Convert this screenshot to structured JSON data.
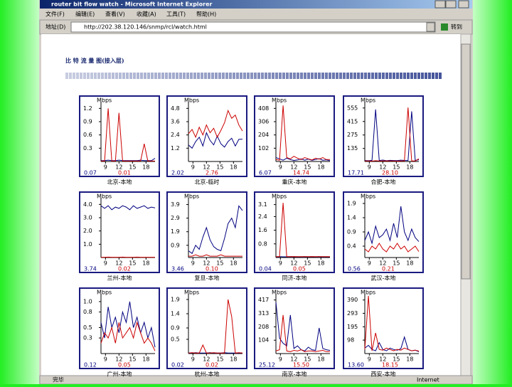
{
  "window": {
    "title": "router bit flow watch - Microsoft Internet Explorer",
    "menu": [
      "文件(F)",
      "编辑(E)",
      "查看(V)",
      "收藏(A)",
      "工具(T)",
      "帮助(H)"
    ],
    "address_label": "地址(D)",
    "url": "http://202.38.120.146/snmp/rcl/watch.html",
    "go": "转到",
    "status": "完毕",
    "zone": "Internet"
  },
  "page": {
    "heading": "比 特 流 量 图(接入层)"
  },
  "x": [
    8,
    8.8,
    9.6,
    10.4,
    11.2,
    12,
    12.8,
    13.6,
    14.4,
    15.2,
    16,
    16.8,
    17.6,
    18.4,
    19.2,
    20
  ],
  "xlim": [
    8,
    20
  ],
  "xticks": [
    9,
    12,
    15,
    18
  ],
  "charts": [
    {
      "name": "北京-本地",
      "unit": "Mbps",
      "ylim": [
        0,
        1.35
      ],
      "yticks": [
        0.3,
        0.6,
        0.9,
        1.2
      ],
      "readings": [
        "0.07",
        "0.01"
      ],
      "series": [
        {
          "color": "#000080",
          "values": [
            0.02,
            0.02,
            0.03,
            0.02,
            0.02,
            0.03,
            0.02,
            0.02,
            0.02,
            0.02,
            0.02,
            0.03,
            0.02,
            0.02,
            0.02,
            0.07
          ]
        },
        {
          "color": "#cc0000",
          "values": [
            0.01,
            0.01,
            1.2,
            0.01,
            0.01,
            1.1,
            0.01,
            0.01,
            0.01,
            0.01,
            0.01,
            0.01,
            0.4,
            0.01,
            0.01,
            0.01
          ]
        }
      ]
    },
    {
      "name": "北京-临时",
      "unit": "Mbps",
      "ylim": [
        0,
        5.4
      ],
      "yticks": [
        1.2,
        2.4,
        3.6,
        4.8
      ],
      "readings": [
        "2.02",
        "2.76"
      ],
      "series": [
        {
          "color": "#000080",
          "values": [
            1.5,
            1.2,
            1.8,
            2.2,
            1.4,
            2.6,
            1.9,
            1.5,
            2.3,
            1.6,
            1.3,
            1.8,
            2.1,
            1.4,
            2,
            2.02
          ]
        },
        {
          "color": "#cc0000",
          "values": [
            2.5,
            2.9,
            2.2,
            3.1,
            2.4,
            3.3,
            2.6,
            3,
            2.2,
            2.8,
            3.5,
            4.6,
            3.9,
            4.2,
            3.3,
            2.76
          ]
        }
      ]
    },
    {
      "name": "重庆-本地",
      "unit": "Mbps",
      "ylim": [
        0,
        459
      ],
      "yticks": [
        102,
        204,
        306,
        408
      ],
      "readings": [
        "6.07",
        "14.74"
      ],
      "series": [
        {
          "color": "#000080",
          "values": [
            30,
            20,
            10,
            25,
            15,
            8,
            12,
            20,
            10,
            18,
            9,
            15,
            22,
            10,
            12,
            6.07
          ]
        },
        {
          "color": "#cc0000",
          "values": [
            15,
            10,
            430,
            30,
            20,
            40,
            25,
            15,
            30,
            20,
            12,
            25,
            18,
            30,
            15,
            14.74
          ]
        }
      ]
    },
    {
      "name": "合肥-本地",
      "unit": "Mbps",
      "ylim": [
        0,
        620
      ],
      "yticks": [
        135,
        275,
        415,
        555
      ],
      "readings": [
        "17.71",
        "28.10"
      ],
      "series": [
        {
          "color": "#000080",
          "values": [
            10,
            8,
            12,
            540,
            10,
            15,
            8,
            12,
            10,
            9,
            14,
            11,
            10,
            520,
            12,
            17.71
          ]
        },
        {
          "color": "#cc0000",
          "values": [
            5,
            6,
            4,
            8,
            5,
            6,
            7,
            5,
            6,
            4,
            5,
            6,
            560,
            6,
            5,
            28.1
          ]
        }
      ]
    },
    {
      "name": "兰州-本地",
      "unit": "Mbps",
      "ylim": [
        0,
        4.5
      ],
      "yticks": [
        {
          "value": 1,
          "label": "1.0"
        },
        {
          "value": 2,
          "label": "2.0"
        },
        {
          "value": 3,
          "label": "3.0"
        },
        {
          "value": 4,
          "label": "4.0"
        }
      ],
      "readings": [
        "3.74",
        "0.02"
      ],
      "series": [
        {
          "color": "#000080",
          "values": [
            3.9,
            3.7,
            3.9,
            3.6,
            3.8,
            3.7,
            3.9,
            3.8,
            3.6,
            3.9,
            3.7,
            3.8,
            3.9,
            3.7,
            3.8,
            3.74
          ]
        },
        {
          "color": "#cc0000",
          "values": [
            0.02,
            0.02,
            0.03,
            0.02,
            0.02,
            0.02,
            0.03,
            0.02,
            0.02,
            0.02,
            0.03,
            0.02,
            0.02,
            0.02,
            0.02,
            0.02
          ]
        }
      ]
    },
    {
      "name": "复旦-本地",
      "unit": "Mbps",
      "ylim": [
        0,
        4.4
      ],
      "yticks": [
        0.9,
        1.9,
        2.9,
        3.9
      ],
      "readings": [
        "3.46",
        "0.10"
      ],
      "series": [
        {
          "color": "#000080",
          "values": [
            0.5,
            0.3,
            0.9,
            0.6,
            1.5,
            2.2,
            1.3,
            0.8,
            0.6,
            0.5,
            1.4,
            2.5,
            2.9,
            2.2,
            3.8,
            3.46
          ]
        },
        {
          "color": "#cc0000",
          "values": [
            0.1,
            0.1,
            0.2,
            0.1,
            0.1,
            0.2,
            0.1,
            0.1,
            0.1,
            0.2,
            0.1,
            0.1,
            0.1,
            0.1,
            0.1,
            0.1
          ]
        }
      ]
    },
    {
      "name": "同济-本地",
      "unit": "Mbps",
      "ylim": [
        0,
        3.5
      ],
      "yticks": [
        0.8,
        1.6,
        2.4,
        3.1
      ],
      "readings": [
        "0.04",
        "0.05"
      ],
      "series": [
        {
          "color": "#000080",
          "values": [
            0.04,
            0.05,
            0.04,
            0.04,
            0.05,
            0.04,
            0.04,
            0.04,
            0.05,
            0.04,
            0.04,
            0.04,
            0.05,
            0.04,
            0.04,
            0.04
          ]
        },
        {
          "color": "#cc0000",
          "values": [
            0.05,
            0.05,
            3.2,
            0.05,
            0.05,
            0.06,
            0.05,
            0.05,
            0.05,
            0.05,
            0.06,
            0.05,
            0.05,
            0.05,
            0.05,
            0.05
          ]
        }
      ]
    },
    {
      "name": "武汉-本地",
      "unit": "Mbps",
      "ylim": [
        0,
        2.1
      ],
      "yticks": [
        0.4,
        0.9,
        1.4,
        1.9
      ],
      "readings": [
        "0.56",
        "0.21"
      ],
      "series": [
        {
          "color": "#000080",
          "values": [
            0.6,
            0.9,
            0.5,
            1.1,
            0.7,
            0.8,
            1,
            0.6,
            1.2,
            0.7,
            1.8,
            0.9,
            0.6,
            1,
            0.7,
            0.56
          ]
        },
        {
          "color": "#cc0000",
          "values": [
            0.3,
            0.2,
            0.4,
            0.3,
            0.5,
            0.3,
            0.2,
            0.4,
            0.3,
            0.5,
            0.3,
            0.4,
            0.2,
            0.3,
            0.4,
            0.21
          ]
        }
      ]
    },
    {
      "name": "广州-本地",
      "unit": "Mbps",
      "ylim": [
        0,
        1.15
      ],
      "yticks": [
        0.3,
        0.5,
        0.8,
        {
          "value": 1,
          "label": "1.0"
        }
      ],
      "readings": [
        "0.12",
        "0.05"
      ],
      "series": [
        {
          "color": "#000080",
          "values": [
            0.6,
            0.3,
            0.9,
            0.5,
            0.7,
            0.4,
            0.8,
            0.6,
            1,
            0.5,
            0.7,
            0.4,
            0.6,
            0.3,
            0.5,
            0.12
          ]
        },
        {
          "color": "#cc0000",
          "values": [
            0.2,
            0.4,
            0.3,
            0.5,
            0.2,
            0.6,
            0.3,
            0.4,
            0.5,
            0.3,
            0.6,
            0.4,
            0.2,
            0.3,
            0.2,
            0.05
          ]
        }
      ]
    },
    {
      "name": "杭州-本地",
      "unit": "Mbps",
      "ylim": [
        0,
        2.1
      ],
      "yticks": [
        0.5,
        0.9,
        1.4,
        1.9
      ],
      "readings": [
        "0.02",
        "0.02"
      ],
      "series": [
        {
          "color": "#000080",
          "values": [
            0.02,
            0.02,
            0.03,
            0.02,
            0.02,
            0.02,
            0.03,
            0.02,
            0.02,
            0.02,
            0.03,
            0.02,
            0.02,
            0.02,
            0.02,
            0.02
          ]
        },
        {
          "color": "#cc0000",
          "values": [
            0.02,
            0.03,
            0.02,
            0.02,
            0.3,
            0.02,
            0.02,
            0.03,
            0.02,
            0.02,
            0.02,
            1.9,
            1.3,
            0.02,
            0.03,
            0.02
          ]
        }
      ]
    },
    {
      "name": "南京-本地",
      "unit": "Mbps",
      "ylim": [
        0,
        465
      ],
      "yticks": [
        104,
        208,
        313,
        417
      ],
      "readings": [
        "25.12",
        "15.50"
      ],
      "series": [
        {
          "color": "#000080",
          "values": [
            400,
            120,
            80,
            60,
            300,
            40,
            60,
            30,
            20,
            50,
            30,
            25,
            200,
            40,
            30,
            25.12
          ]
        },
        {
          "color": "#cc0000",
          "values": [
            20,
            30,
            300,
            20,
            15,
            25,
            20,
            30,
            15,
            20,
            20,
            15,
            20,
            25,
            15,
            15.5
          ]
        }
      ]
    },
    {
      "name": "西安-本地",
      "unit": "Mbps",
      "ylim": [
        0,
        435
      ],
      "yticks": [
        98,
        195,
        293,
        390
      ],
      "readings": [
        "13.60",
        "18.15"
      ],
      "series": [
        {
          "color": "#000080",
          "values": [
            40,
            60,
            30,
            20,
            80,
            30,
            20,
            40,
            30,
            25,
            35,
            120,
            30,
            20,
            25,
            13.6
          ]
        },
        {
          "color": "#cc0000",
          "values": [
            30,
            420,
            20,
            150,
            30,
            25,
            40,
            30,
            20,
            30,
            25,
            40,
            30,
            20,
            25,
            18.15
          ]
        }
      ]
    }
  ]
}
